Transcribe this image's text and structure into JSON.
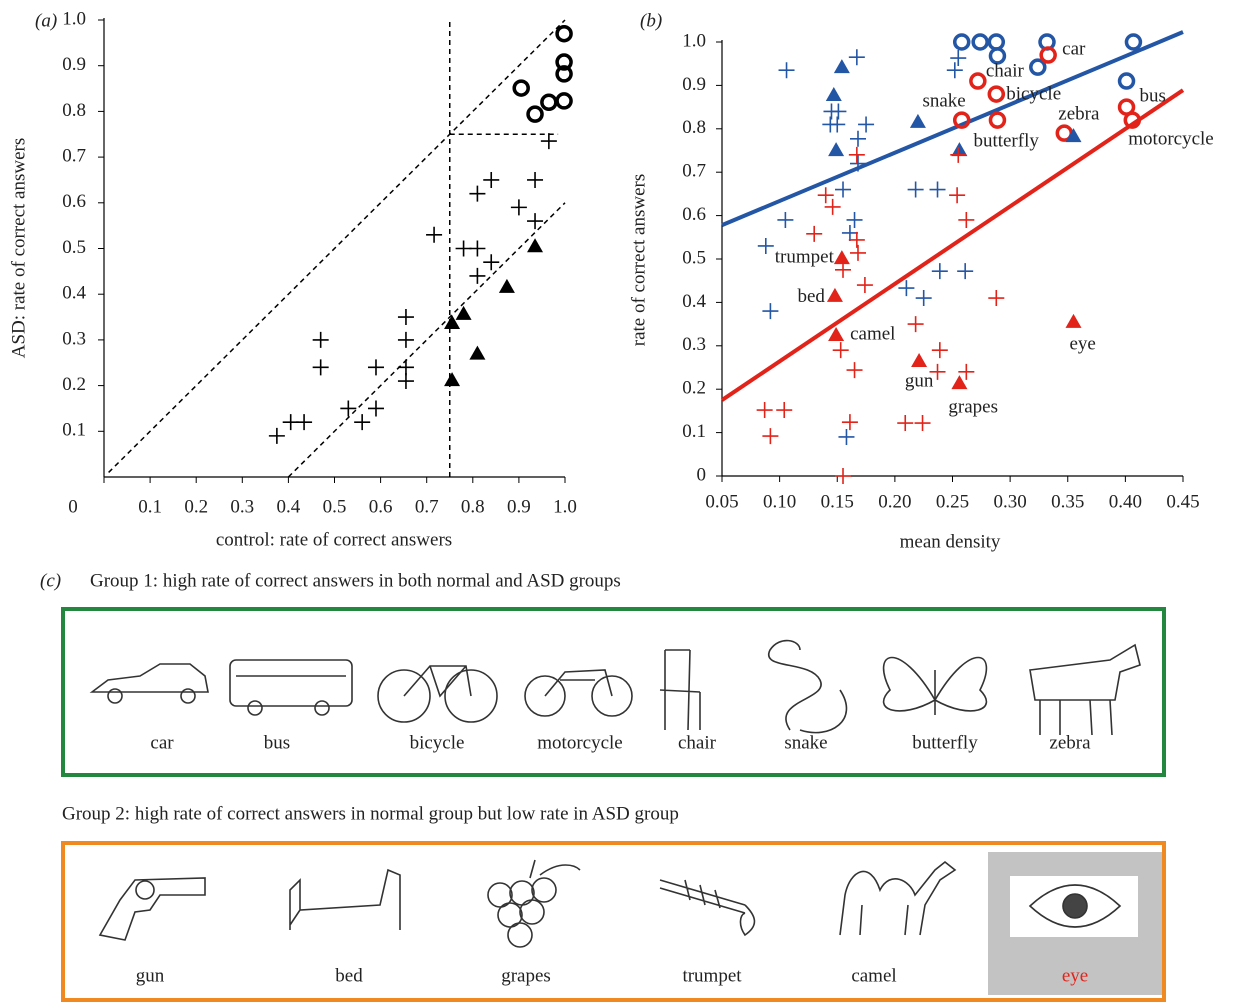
{
  "chart_data": [
    {
      "type": "scatter",
      "panel_label": "(a)",
      "x_label": "control: rate of correct answers",
      "y_label": "ASD: rate of correct answers",
      "xlim": [
        0,
        1
      ],
      "ylim": [
        0,
        1
      ],
      "xticks": [
        0,
        0.1,
        0.2,
        0.3,
        0.4,
        0.5,
        0.6,
        0.7,
        0.8,
        0.9,
        {
          "value": 1,
          "label": "1.0"
        }
      ],
      "yticks": [
        0.1,
        0.2,
        0.3,
        0.4,
        0.5,
        0.6,
        0.7,
        0.8,
        0.9,
        {
          "value": 1,
          "label": "1.0"
        }
      ],
      "series": [
        {
          "color": "#000000",
          "marker": "circle",
          "x": [
            0.998,
            0.998,
            0.998,
            0.998,
            0.965,
            0.935,
            0.905
          ],
          "values": [
            0.97,
            0.908,
            0.882,
            0.823,
            0.82,
            0.794,
            0.851
          ]
        },
        {
          "color": "#000000",
          "marker": "triangle",
          "x": [
            0.935,
            0.874,
            0.81,
            0.78,
            0.755,
            0.755
          ],
          "values": [
            0.505,
            0.416,
            0.27,
            0.357,
            0.337,
            0.212
          ]
        },
        {
          "color": "#000000",
          "marker": "cross",
          "x": [
            0.375,
            0.405,
            0.434,
            0.47,
            0.47,
            0.53,
            0.56,
            0.59,
            0.59,
            0.655,
            0.655,
            0.655,
            0.655,
            0.716,
            0.78,
            0.81,
            0.81,
            0.81,
            0.84,
            0.84,
            0.9,
            0.935,
            0.935,
            0.965
          ],
          "values": [
            0.09,
            0.12,
            0.12,
            0.3,
            0.24,
            0.15,
            0.12,
            0.24,
            0.15,
            0.35,
            0.3,
            0.24,
            0.21,
            0.53,
            0.5,
            0.5,
            0.44,
            0.62,
            0.65,
            0.47,
            0.59,
            0.65,
            0.56,
            0.735
          ]
        }
      ],
      "lines": [
        {
          "color": "#000000",
          "style": "dashed",
          "x": [
            0.75,
            0.75
          ],
          "values": [
            0,
            1
          ]
        },
        {
          "color": "#000000",
          "style": "dashed",
          "x": [
            0.75,
            0.985
          ],
          "values": [
            0.75,
            0.75
          ]
        },
        {
          "color": "#000000",
          "style": "dashed",
          "x": [
            0.01,
            1
          ],
          "values": [
            0.01,
            1
          ]
        },
        {
          "color": "#000000",
          "style": "dashed",
          "x": [
            0.4,
            1
          ],
          "values": [
            0,
            0.6
          ]
        }
      ]
    },
    {
      "type": "scatter",
      "panel_label": "(b)",
      "x_label": "mean density",
      "y_label": "rate of correct answers",
      "xlim": [
        0.05,
        0.45
      ],
      "ylim": [
        0,
        1
      ],
      "xticks": [
        0.05,
        {
          "value": 0.1,
          "label": "0.10"
        },
        0.15,
        {
          "value": 0.2,
          "label": "0.20"
        },
        0.25,
        {
          "value": 0.3,
          "label": "0.30"
        },
        0.35,
        {
          "value": 0.4,
          "label": "0.40"
        },
        0.45
      ],
      "yticks": [
        0,
        0.1,
        0.2,
        0.3,
        0.4,
        0.5,
        0.6,
        0.7,
        0.8,
        0.9,
        {
          "value": 1,
          "label": "1.0"
        }
      ],
      "series": [
        {
          "color": "#2456a6",
          "marker": "circle",
          "x": [
            0.258,
            0.274,
            0.288,
            0.289,
            0.332,
            0.324,
            0.407,
            0.401
          ],
          "values": [
            1.0,
            1.0,
            1.0,
            0.968,
            1.0,
            0.942,
            1.0,
            0.91
          ]
        },
        {
          "color": "#e2231a",
          "marker": "circle",
          "x": [
            0.333,
            0.272,
            0.288,
            0.258,
            0.289,
            0.347,
            0.401,
            0.406
          ],
          "values": [
            0.97,
            0.91,
            0.88,
            0.82,
            0.82,
            0.79,
            0.85,
            0.82
          ],
          "labels": [
            "car",
            "chair",
            "bicycle",
            "snake",
            "butterfly",
            "zebra",
            "bus",
            "motorcycle"
          ]
        },
        {
          "color": "#2456a6",
          "marker": "triangle",
          "x": [
            0.154,
            0.147,
            0.149,
            0.22,
            0.256,
            0.355
          ],
          "values": [
            0.942,
            0.878,
            0.751,
            0.816,
            0.751,
            0.783
          ]
        },
        {
          "color": "#e2231a",
          "marker": "triangle",
          "x": [
            0.154,
            0.148,
            0.149,
            0.221,
            0.256,
            0.355
          ],
          "values": [
            0.502,
            0.415,
            0.325,
            0.265,
            0.214,
            0.355
          ],
          "labels": [
            "trumpet",
            "bed",
            "camel",
            "gun",
            "grapes",
            "eye"
          ]
        },
        {
          "color": "#2456a6",
          "marker": "cross",
          "x": [
            0.106,
            0.167,
            0.145,
            0.151,
            0.144,
            0.15,
            0.175,
            0.168,
            0.168,
            0.155,
            0.105,
            0.165,
            0.161,
            0.088,
            0.092,
            0.21,
            0.225,
            0.218,
            0.237,
            0.239,
            0.261,
            0.158,
            0.255,
            0.252
          ],
          "values": [
            0.935,
            0.965,
            0.84,
            0.84,
            0.81,
            0.81,
            0.81,
            0.777,
            0.72,
            0.66,
            0.59,
            0.59,
            0.56,
            0.53,
            0.38,
            0.433,
            0.41,
            0.66,
            0.66,
            0.472,
            0.472,
            0.09,
            0.963,
            0.935
          ]
        },
        {
          "color": "#e2231a",
          "marker": "cross",
          "x": [
            0.14,
            0.146,
            0.13,
            0.167,
            0.167,
            0.168,
            0.155,
            0.174,
            0.153,
            0.165,
            0.161,
            0.155,
            0.087,
            0.104,
            0.092,
            0.218,
            0.239,
            0.237,
            0.209,
            0.224,
            0.254,
            0.262,
            0.255,
            0.262,
            0.288
          ],
          "values": [
            0.647,
            0.62,
            0.558,
            0.74,
            0.544,
            0.514,
            0.475,
            0.44,
            0.29,
            0.244,
            0.124,
            0.0,
            0.152,
            0.152,
            0.092,
            0.35,
            0.29,
            0.24,
            0.122,
            0.122,
            0.647,
            0.59,
            0.74,
            0.24,
            0.41
          ]
        }
      ],
      "lines": [
        {
          "color": "#2456a6",
          "style": "solid",
          "x": [
            0.05,
            0.45
          ],
          "values": [
            0.578,
            1.023
          ]
        },
        {
          "color": "#e2231a",
          "style": "solid",
          "x": [
            0.05,
            0.45
          ],
          "values": [
            0.175,
            0.889
          ]
        }
      ]
    }
  ],
  "panel_c": {
    "label": "(c)",
    "groups": [
      {
        "title": "Group 1: high rate of correct answers in both normal and ASD groups",
        "items": [
          "car",
          "bus",
          "bicycle",
          "motorcycle",
          "chair",
          "snake",
          "butterfly",
          "zebra"
        ]
      },
      {
        "title": "Group 2: high rate of correct answers in normal group but low rate in ASD group",
        "items": [
          "gun",
          "bed",
          "grapes",
          "trumpet",
          "camel",
          "eye"
        ]
      }
    ]
  }
}
